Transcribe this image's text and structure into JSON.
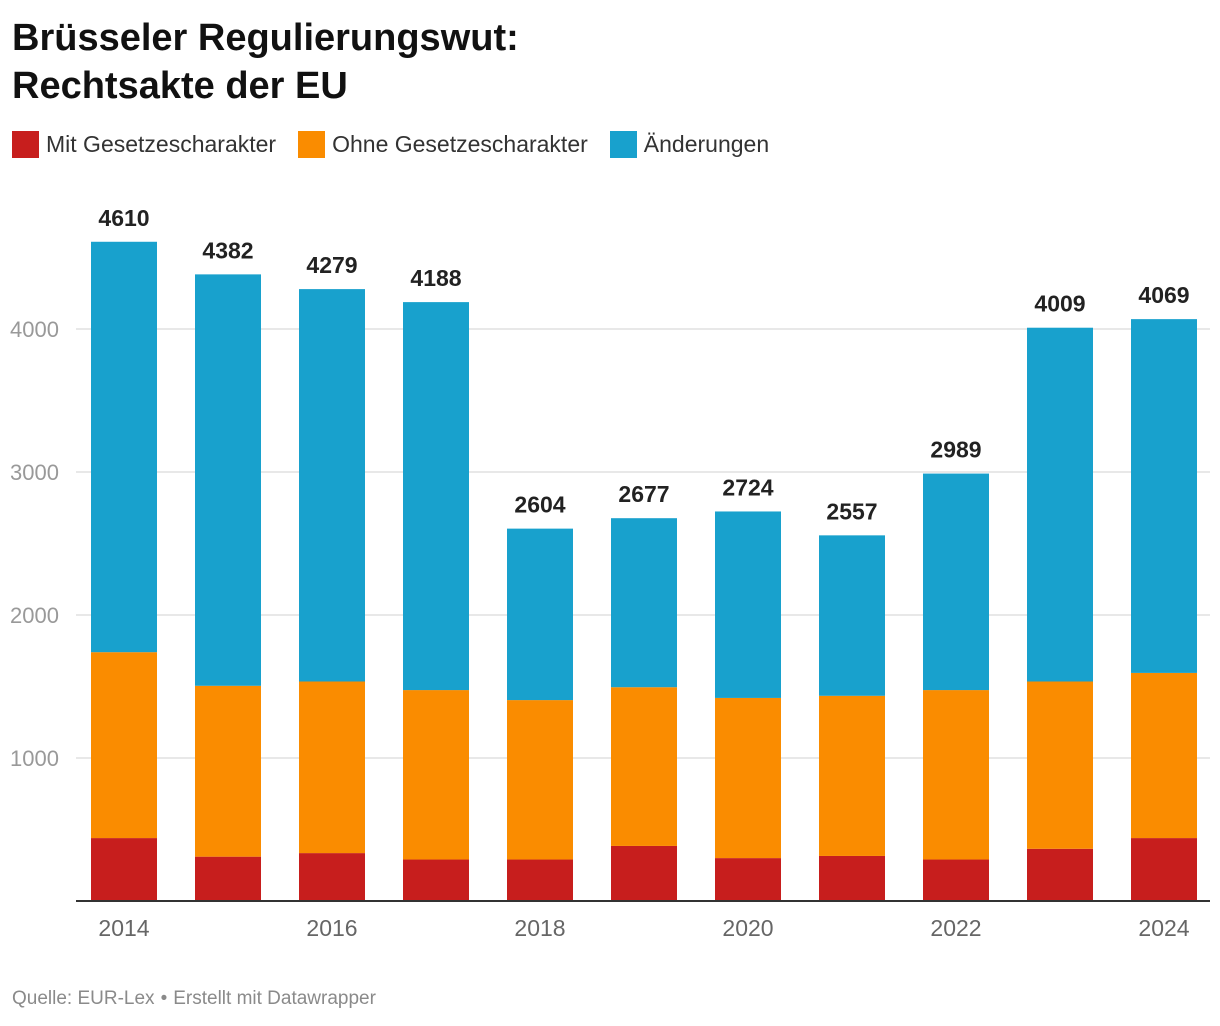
{
  "title_line1": "Brüsseler Regulierungswut:",
  "title_line2": "Rechtsakte der EU",
  "source": "Quelle: EUR-Lex",
  "credit": "Erstellt mit Datawrapper",
  "colors": {
    "mit": "#c71e1d",
    "ohne": "#fa8c00",
    "aenderungen": "#18a1cd",
    "grid": "#e0e0e0",
    "axis": "#333333",
    "ticklabel": "#999999"
  },
  "legend": [
    {
      "label": "Mit Gesetzescharakter",
      "color": "#c71e1d"
    },
    {
      "label": "Ohne Gesetzescharakter",
      "color": "#fa8c00"
    },
    {
      "label": "Änderungen",
      "color": "#18a1cd"
    }
  ],
  "chart_data": {
    "type": "bar",
    "stacked": true,
    "categories": [
      "2014",
      "2015",
      "2016",
      "2017",
      "2018",
      "2019",
      "2020",
      "2021",
      "2022",
      "2023",
      "2024"
    ],
    "x_tick_labels": [
      "2014",
      "2016",
      "2018",
      "2020",
      "2022",
      "2024"
    ],
    "series": [
      {
        "name": "Mit Gesetzescharakter",
        "values": [
          440,
          310,
          335,
          290,
          290,
          385,
          300,
          315,
          290,
          365,
          440
        ]
      },
      {
        "name": "Ohne Gesetzescharakter",
        "values": [
          1300,
          1195,
          1200,
          1185,
          1115,
          1110,
          1120,
          1120,
          1185,
          1170,
          1155
        ]
      },
      {
        "name": "Änderungen",
        "values": [
          2870,
          2877,
          2744,
          2713,
          1199,
          1182,
          1304,
          1122,
          1514,
          2474,
          2474
        ]
      }
    ],
    "totals": [
      4610,
      4382,
      4279,
      4188,
      2604,
      2677,
      2724,
      2557,
      2989,
      4009,
      4069
    ],
    "yticks": [
      1000,
      2000,
      3000,
      4000
    ],
    "ylim": [
      0,
      4800
    ],
    "grid": true,
    "legend_position": "top-left"
  }
}
